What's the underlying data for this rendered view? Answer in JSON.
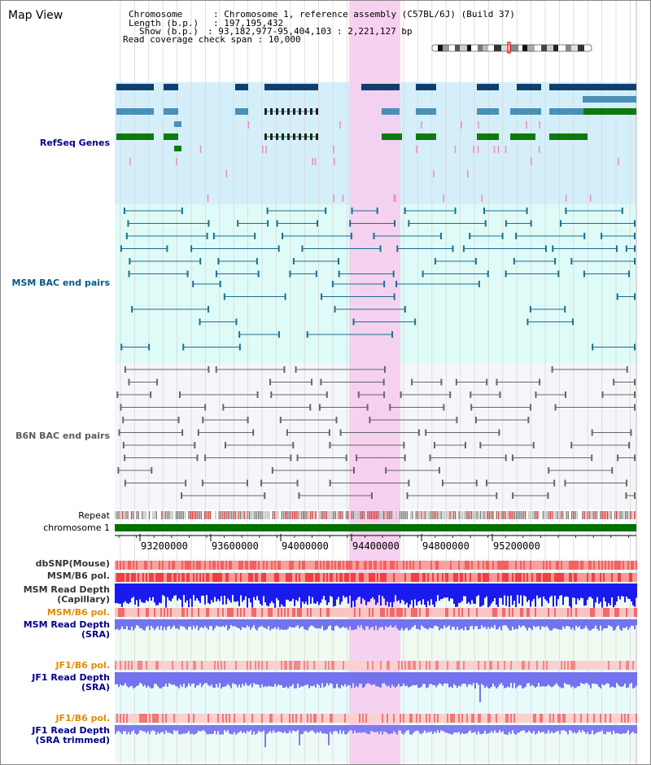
{
  "view_title": "Map View",
  "header": {
    "chromosome_label": "Chromosome",
    "chromosome_value": "Chromosome 1, reference assembly (C57BL/6J) (Build 37)",
    "length_label": "Length (b.p.)",
    "length_value": "197,195,432",
    "show_label": "Show (b.p.)",
    "show_value": "93,182,977-95,404,103 : 2,221,127 bp",
    "span_label": "Read coverage check span",
    "span_value": "10,000"
  },
  "tracks": {
    "refseq": "RefSeq Genes",
    "msm_bac": "MSM BAC end pairs",
    "b6n_bac": "B6N BAC end pairs",
    "repeat": "Repeat",
    "chromosome": "chromosome 1",
    "dbsnp": "dbSNP(Mouse)",
    "msm_b6_pol_1": "MSM/B6 pol.",
    "msm_read_depth_cap_1": "MSM Read Depth",
    "msm_read_depth_cap_2": "(Capillary)",
    "msm_b6_pol_2": "MSM/B6 pol.",
    "msm_read_depth_sra_1": "MSM Read Depth",
    "msm_read_depth_sra_2": "(SRA)",
    "jf1_b6_pol_1": "JF1/B6 pol.",
    "jf1_read_depth_sra_1": "JF1 Read Depth",
    "jf1_read_depth_sra_2": "(SRA)",
    "jf1_b6_pol_2": "JF1/B6 pol.",
    "jf1_read_depth_trim_1": "JF1 Read Depth",
    "jf1_read_depth_trim_2": "(SRA trimmed)"
  },
  "axis_ticks": [
    "93200000",
    "93600000",
    "94000000",
    "94400000",
    "94800000",
    "95200000"
  ],
  "colors": {
    "refseq_label": "#00008b",
    "msm_bac_label": "#005a87",
    "b6n_bac_label": "#5a5a5a",
    "orange_label": "#e08c00",
    "highlight": "#f6cdee",
    "refseq_bg": "#d4effa",
    "msm_bg": "#defbf7",
    "b6n_bg": "#f4f6f9",
    "chromosome_bar": "#007000"
  }
}
